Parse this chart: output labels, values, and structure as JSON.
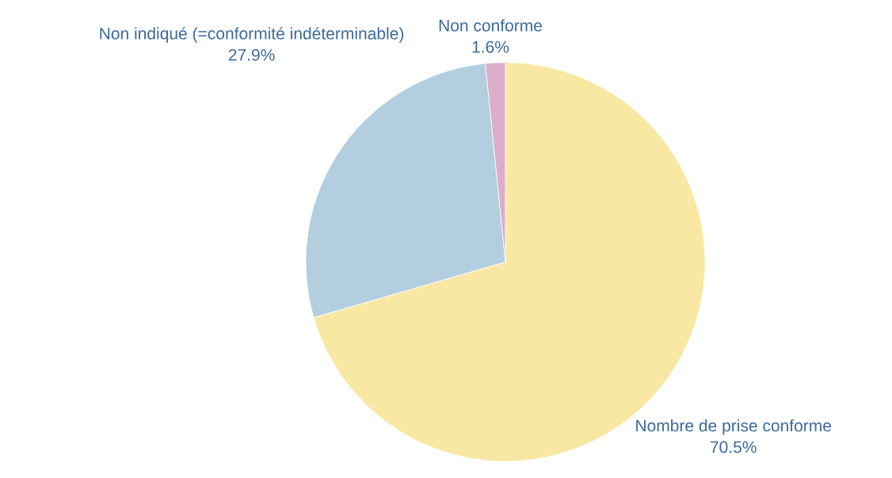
{
  "chart_data": {
    "type": "pie",
    "categories": [
      "Nombre de prise conforme",
      "Non indiqué (=conformité indéterminable)",
      "Non conforme"
    ],
    "values": [
      70.5,
      27.9,
      1.6
    ],
    "value_labels": [
      "70.5%",
      "27.9%",
      "1.6%"
    ],
    "colors": [
      "#f9e8a3",
      "#b3cfdf",
      "#dcaec8"
    ]
  }
}
